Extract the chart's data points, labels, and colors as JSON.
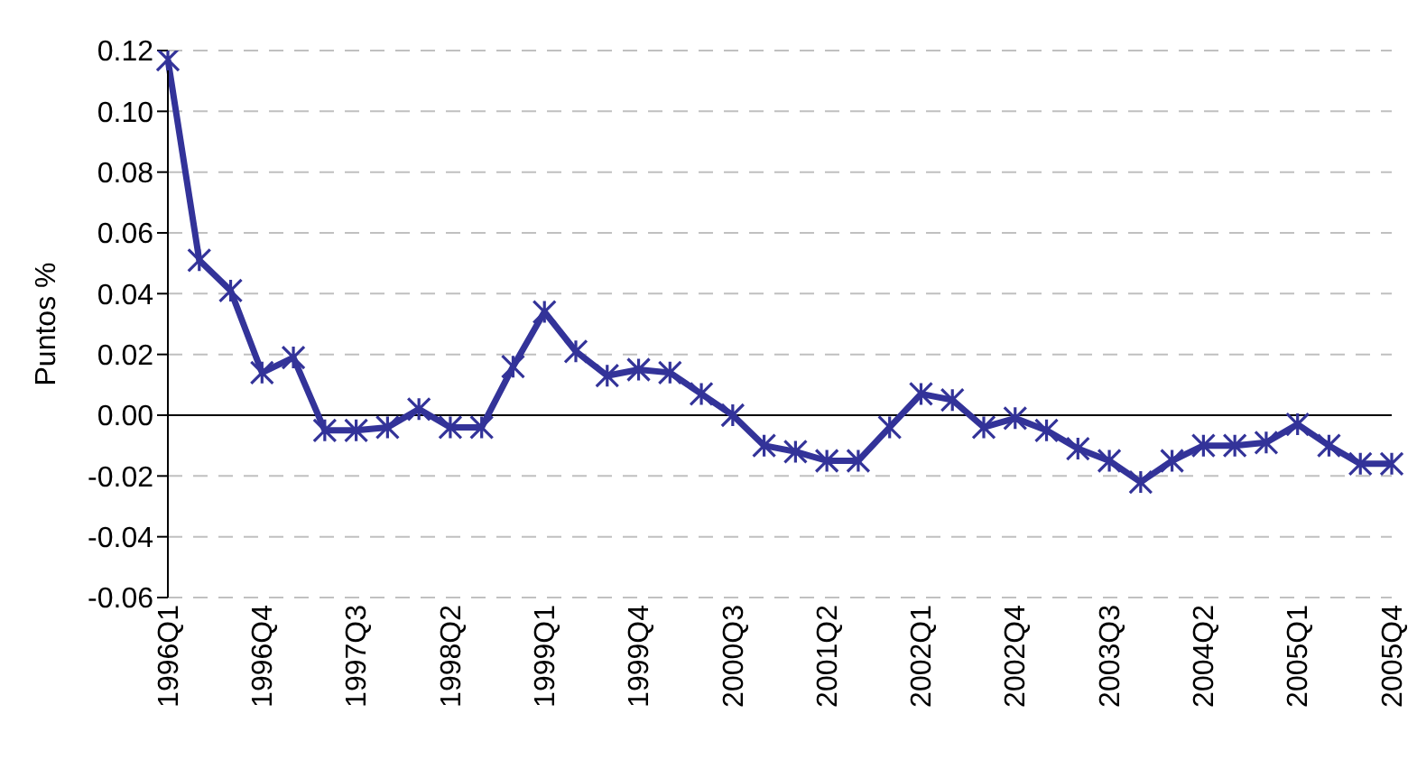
{
  "chart_data": {
    "type": "line",
    "ylabel": "Puntos %",
    "categories": [
      "1996Q1",
      null,
      null,
      "1996Q4",
      null,
      null,
      "1997Q3",
      null,
      null,
      "1998Q2",
      null,
      null,
      "1999Q1",
      null,
      null,
      "1999Q4",
      null,
      null,
      "2000Q3",
      null,
      null,
      "2001Q2",
      null,
      null,
      "2002Q1",
      null,
      null,
      "2002Q4",
      null,
      null,
      "2003Q3",
      null,
      null,
      "2004Q2",
      null,
      null,
      "2005Q1",
      null,
      null,
      "2005Q4"
    ],
    "series": [
      {
        "color": "#333399",
        "values": [
          0.117,
          0.051,
          0.041,
          0.014,
          0.019,
          -0.005,
          -0.005,
          -0.004,
          0.002,
          -0.004,
          -0.004,
          0.016,
          0.034,
          0.021,
          0.013,
          0.015,
          0.014,
          0.007,
          0.0,
          -0.01,
          -0.012,
          -0.015,
          -0.015,
          -0.004,
          0.007,
          0.005,
          -0.004,
          -0.001,
          -0.005,
          -0.011,
          -0.015,
          -0.022,
          -0.015,
          -0.01,
          -0.01,
          -0.009,
          -0.003,
          -0.01,
          -0.016,
          -0.016
        ]
      }
    ],
    "ylim": [
      -0.06,
      0.12
    ],
    "yticks": [
      {
        "value": -0.06,
        "label": "-0.06"
      },
      {
        "value": -0.04,
        "label": "-0.04"
      },
      {
        "value": -0.02,
        "label": "-0.02"
      },
      {
        "value": 0,
        "label": "0.00"
      },
      {
        "value": 0.02,
        "label": "0.02"
      },
      {
        "value": 0.04,
        "label": "0.04"
      },
      {
        "value": 0.06,
        "label": "0.06"
      },
      {
        "value": 0.08,
        "label": "0.08"
      },
      {
        "value": 0.1,
        "label": "0.10"
      },
      {
        "value": 0.12,
        "label": "0.12"
      }
    ],
    "grid": "y",
    "legend": false,
    "marker": "cross",
    "line_style": "solid"
  }
}
